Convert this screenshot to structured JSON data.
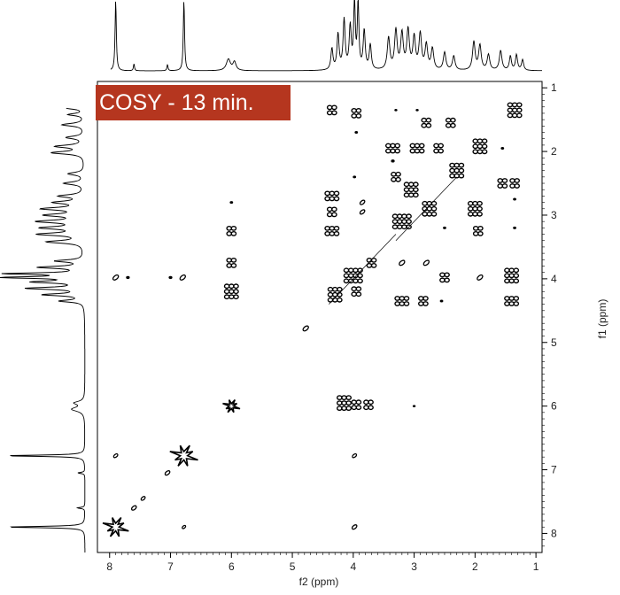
{
  "chart_data": {
    "type": "heatmap",
    "title": "COSY - 13 min.",
    "xlabel": "f2 (ppm)",
    "ylabel": "f1 (ppm)",
    "xlim": [
      8.2,
      0.9
    ],
    "ylim": [
      0.9,
      8.3
    ],
    "x_ticks": [
      "8",
      "7",
      "6",
      "5",
      "4",
      "3",
      "2",
      "1"
    ],
    "y_ticks": [
      "1",
      "2",
      "3",
      "4",
      "5",
      "6",
      "7",
      "8"
    ],
    "grid": false,
    "projection_peaks": [
      {
        "ppm": 7.9,
        "height": 1.0,
        "width": 0.012
      },
      {
        "ppm": 7.6,
        "height": 0.1,
        "width": 0.01
      },
      {
        "ppm": 7.05,
        "height": 0.09,
        "width": 0.01
      },
      {
        "ppm": 6.78,
        "height": 1.0,
        "width": 0.012
      },
      {
        "ppm": 6.05,
        "height": 0.16,
        "width": 0.04
      },
      {
        "ppm": 5.95,
        "height": 0.12,
        "width": 0.03
      },
      {
        "ppm": 4.35,
        "height": 0.3,
        "width": 0.02
      },
      {
        "ppm": 4.25,
        "height": 0.5,
        "width": 0.02
      },
      {
        "ppm": 4.15,
        "height": 0.7,
        "width": 0.02
      },
      {
        "ppm": 4.05,
        "height": 0.6,
        "width": 0.02
      },
      {
        "ppm": 3.98,
        "height": 1.0,
        "width": 0.015
      },
      {
        "ppm": 3.92,
        "height": 0.95,
        "width": 0.015
      },
      {
        "ppm": 3.82,
        "height": 0.55,
        "width": 0.02
      },
      {
        "ppm": 3.72,
        "height": 0.35,
        "width": 0.02
      },
      {
        "ppm": 3.42,
        "height": 0.45,
        "width": 0.025
      },
      {
        "ppm": 3.3,
        "height": 0.55,
        "width": 0.025
      },
      {
        "ppm": 3.2,
        "height": 0.5,
        "width": 0.025
      },
      {
        "ppm": 3.1,
        "height": 0.55,
        "width": 0.025
      },
      {
        "ppm": 3.0,
        "height": 0.45,
        "width": 0.025
      },
      {
        "ppm": 2.9,
        "height": 0.5,
        "width": 0.025
      },
      {
        "ppm": 2.8,
        "height": 0.35,
        "width": 0.025
      },
      {
        "ppm": 2.7,
        "height": 0.3,
        "width": 0.025
      },
      {
        "ppm": 2.5,
        "height": 0.25,
        "width": 0.025
      },
      {
        "ppm": 2.35,
        "height": 0.2,
        "width": 0.025
      },
      {
        "ppm": 2.02,
        "height": 0.4,
        "width": 0.025
      },
      {
        "ppm": 1.92,
        "height": 0.35,
        "width": 0.025
      },
      {
        "ppm": 1.78,
        "height": 0.22,
        "width": 0.025
      },
      {
        "ppm": 1.58,
        "height": 0.28,
        "width": 0.025
      },
      {
        "ppm": 1.42,
        "height": 0.2,
        "width": 0.02
      },
      {
        "ppm": 1.32,
        "height": 0.22,
        "width": 0.02
      },
      {
        "ppm": 1.22,
        "height": 0.15,
        "width": 0.02
      }
    ],
    "cross_peaks": [
      {
        "x": 7.9,
        "y": 7.9,
        "kind": "star",
        "size": 1.2
      },
      {
        "x": 7.6,
        "y": 7.6,
        "kind": "ellipse",
        "size": 0.7
      },
      {
        "x": 7.45,
        "y": 7.45,
        "kind": "ellipse",
        "size": 0.6
      },
      {
        "x": 7.05,
        "y": 7.05,
        "kind": "ellipse",
        "size": 0.7
      },
      {
        "x": 6.78,
        "y": 6.78,
        "kind": "star",
        "size": 1.3
      },
      {
        "x": 4.78,
        "y": 4.78,
        "kind": "ellipse",
        "size": 0.8
      },
      {
        "x": 7.9,
        "y": 6.78,
        "kind": "ellipse",
        "size": 0.6
      },
      {
        "x": 6.78,
        "y": 7.9,
        "kind": "ellipse",
        "size": 0.5
      },
      {
        "x": 3.98,
        "y": 7.9,
        "kind": "ellipse",
        "size": 0.7
      },
      {
        "x": 3.98,
        "y": 6.78,
        "kind": "ellipse",
        "size": 0.6
      },
      {
        "x": 7.9,
        "y": 3.98,
        "kind": "ellipse",
        "size": 0.8
      },
      {
        "x": 7.7,
        "y": 3.98,
        "kind": "dot",
        "size": 0.6
      },
      {
        "x": 7.0,
        "y": 3.98,
        "kind": "dot",
        "size": 0.6
      },
      {
        "x": 6.8,
        "y": 3.98,
        "kind": "ellipse",
        "size": 0.8
      },
      {
        "x": 6.0,
        "y": 6.0,
        "kind": "star",
        "size": 0.8
      },
      {
        "x": 6.0,
        "y": 4.2,
        "kind": "cluster",
        "size": 1.0
      },
      {
        "x": 6.0,
        "y": 3.75,
        "kind": "cluster",
        "size": 0.7
      },
      {
        "x": 6.0,
        "y": 3.25,
        "kind": "cluster",
        "size": 0.6
      },
      {
        "x": 6.0,
        "y": 2.8,
        "kind": "dot",
        "size": 0.5
      },
      {
        "x": 4.15,
        "y": 5.95,
        "kind": "cluster",
        "size": 1.0
      },
      {
        "x": 3.95,
        "y": 5.98,
        "kind": "cluster",
        "size": 0.6
      },
      {
        "x": 3.75,
        "y": 5.98,
        "kind": "cluster",
        "size": 0.5
      },
      {
        "x": 3.0,
        "y": 6.0,
        "kind": "dot",
        "size": 0.4
      },
      {
        "x": 4.35,
        "y": 1.35,
        "kind": "cluster",
        "size": 0.8
      },
      {
        "x": 3.95,
        "y": 1.4,
        "kind": "cluster",
        "size": 0.8
      },
      {
        "x": 3.95,
        "y": 1.7,
        "kind": "dot",
        "size": 0.5
      },
      {
        "x": 2.8,
        "y": 1.55,
        "kind": "cluster",
        "size": 0.7
      },
      {
        "x": 2.4,
        "y": 1.55,
        "kind": "cluster",
        "size": 0.7
      },
      {
        "x": 3.3,
        "y": 1.35,
        "kind": "dot",
        "size": 0.4
      },
      {
        "x": 2.95,
        "y": 1.35,
        "kind": "dot",
        "size": 0.4
      },
      {
        "x": 1.35,
        "y": 1.35,
        "kind": "cluster",
        "size": 1.0
      },
      {
        "x": 1.92,
        "y": 1.92,
        "kind": "cluster",
        "size": 1.0
      },
      {
        "x": 2.3,
        "y": 2.3,
        "kind": "cluster",
        "size": 1.0
      },
      {
        "x": 3.35,
        "y": 1.95,
        "kind": "cluster",
        "size": 0.9
      },
      {
        "x": 2.95,
        "y": 1.95,
        "kind": "cluster",
        "size": 0.9
      },
      {
        "x": 2.6,
        "y": 1.95,
        "kind": "cluster",
        "size": 0.8
      },
      {
        "x": 3.35,
        "y": 2.15,
        "kind": "dot",
        "size": 0.6
      },
      {
        "x": 1.55,
        "y": 1.95,
        "kind": "dot",
        "size": 0.5
      },
      {
        "x": 4.35,
        "y": 2.7,
        "kind": "cluster",
        "size": 0.9
      },
      {
        "x": 4.35,
        "y": 2.95,
        "kind": "cluster",
        "size": 0.8
      },
      {
        "x": 4.35,
        "y": 3.25,
        "kind": "cluster",
        "size": 0.9
      },
      {
        "x": 3.98,
        "y": 2.4,
        "kind": "dot",
        "size": 0.5
      },
      {
        "x": 3.85,
        "y": 2.8,
        "kind": "ellipse",
        "size": 0.7
      },
      {
        "x": 3.85,
        "y": 2.95,
        "kind": "ellipse",
        "size": 0.7
      },
      {
        "x": 3.3,
        "y": 2.4,
        "kind": "cluster",
        "size": 0.8
      },
      {
        "x": 3.05,
        "y": 2.6,
        "kind": "cluster",
        "size": 1.0
      },
      {
        "x": 2.75,
        "y": 2.9,
        "kind": "cluster",
        "size": 1.1
      },
      {
        "x": 3.2,
        "y": 3.1,
        "kind": "cluster",
        "size": 1.2
      },
      {
        "x": 2.5,
        "y": 3.2,
        "kind": "dot",
        "size": 0.5
      },
      {
        "x": 2.0,
        "y": 2.9,
        "kind": "cluster",
        "size": 1.0
      },
      {
        "x": 1.95,
        "y": 3.25,
        "kind": "cluster",
        "size": 0.8
      },
      {
        "x": 1.55,
        "y": 2.5,
        "kind": "cluster",
        "size": 0.8
      },
      {
        "x": 1.35,
        "y": 2.5,
        "kind": "cluster",
        "size": 0.8
      },
      {
        "x": 1.35,
        "y": 2.75,
        "kind": "dot",
        "size": 0.5
      },
      {
        "x": 1.35,
        "y": 3.2,
        "kind": "dot",
        "size": 0.5
      },
      {
        "x": 4.0,
        "y": 3.95,
        "kind": "cluster",
        "size": 1.3
      },
      {
        "x": 4.3,
        "y": 4.25,
        "kind": "cluster",
        "size": 1.1
      },
      {
        "x": 3.7,
        "y": 3.75,
        "kind": "cluster",
        "size": 0.8
      },
      {
        "x": 3.95,
        "y": 4.2,
        "kind": "cluster",
        "size": 0.7
      },
      {
        "x": 3.2,
        "y": 3.75,
        "kind": "ellipse",
        "size": 0.8
      },
      {
        "x": 2.8,
        "y": 3.75,
        "kind": "ellipse",
        "size": 0.8
      },
      {
        "x": 2.5,
        "y": 3.98,
        "kind": "cluster",
        "size": 0.8
      },
      {
        "x": 1.92,
        "y": 3.98,
        "kind": "ellipse",
        "size": 0.8
      },
      {
        "x": 1.4,
        "y": 3.95,
        "kind": "cluster",
        "size": 1.0
      },
      {
        "x": 3.2,
        "y": 4.35,
        "kind": "cluster",
        "size": 0.9
      },
      {
        "x": 2.85,
        "y": 4.35,
        "kind": "cluster",
        "size": 0.8
      },
      {
        "x": 2.55,
        "y": 4.35,
        "kind": "dot",
        "size": 0.5
      },
      {
        "x": 1.4,
        "y": 4.35,
        "kind": "cluster",
        "size": 0.9
      }
    ]
  }
}
